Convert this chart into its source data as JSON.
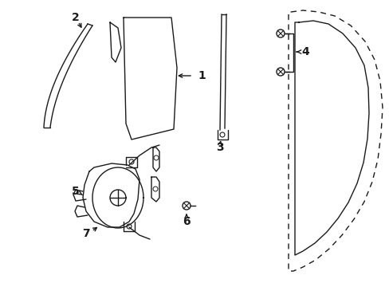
{
  "bg_color": "#ffffff",
  "line_color": "#1a1a1a",
  "lw": 1.0,
  "fig_w": 4.89,
  "fig_h": 3.6,
  "dpi": 100
}
